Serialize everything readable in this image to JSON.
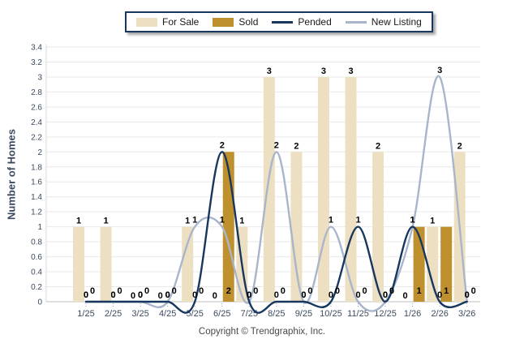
{
  "page": {
    "footer": "Copyright © Trendgraphix, Inc."
  },
  "chart_data": {
    "type": "bar",
    "title": "",
    "xlabel": "",
    "ylabel": "Number of Homes",
    "categories": [
      "1/25",
      "2/25",
      "3/25",
      "4/25",
      "5/25",
      "6/25",
      "7/25",
      "8/25",
      "9/25",
      "10/25",
      "11/25",
      "12/25",
      "1/26",
      "2/26",
      "3/26"
    ],
    "series": [
      {
        "name": "For Sale",
        "type": "bar",
        "color": "#EDE0C2",
        "values": [
          1,
          1,
          0,
          0,
          1,
          0,
          1,
          3,
          2,
          3,
          3,
          2,
          0,
          1,
          2
        ]
      },
      {
        "name": "Sold",
        "type": "bar",
        "color": "#BF912E",
        "values": [
          0,
          0,
          0,
          0,
          0,
          2,
          0,
          0,
          0,
          0,
          0,
          0,
          1,
          1,
          0
        ]
      },
      {
        "name": "Pended",
        "type": "line",
        "color": "#17375E",
        "values": [
          0,
          0,
          0,
          0,
          0,
          2,
          0,
          0,
          0,
          0,
          1,
          0,
          1,
          0,
          0
        ]
      },
      {
        "name": "New Listing",
        "type": "line",
        "color": "#A9B5CB",
        "values": [
          0,
          0,
          0,
          0,
          1,
          1,
          0,
          2,
          0,
          1,
          0,
          0,
          1,
          3,
          0
        ]
      }
    ],
    "ylim": [
      0,
      3.4
    ],
    "ytick_labels": [
      "0",
      "0.2",
      "0.4",
      "0.6",
      "0.8",
      "1",
      "1.2",
      "1.4",
      "1.6",
      "1.8",
      "2",
      "2.2",
      "2.4",
      "2.6",
      "2.8",
      "3",
      "3.2",
      "3.4"
    ],
    "grid": true,
    "legend_position": "top",
    "colors": {
      "grid": "#E9E9E9",
      "baseline": "#C0C0C0",
      "axis_text": "#3A4A5E",
      "data_label": "#000000",
      "tick_mark": "#8FA0B5",
      "legend_border": "#17375E"
    }
  }
}
